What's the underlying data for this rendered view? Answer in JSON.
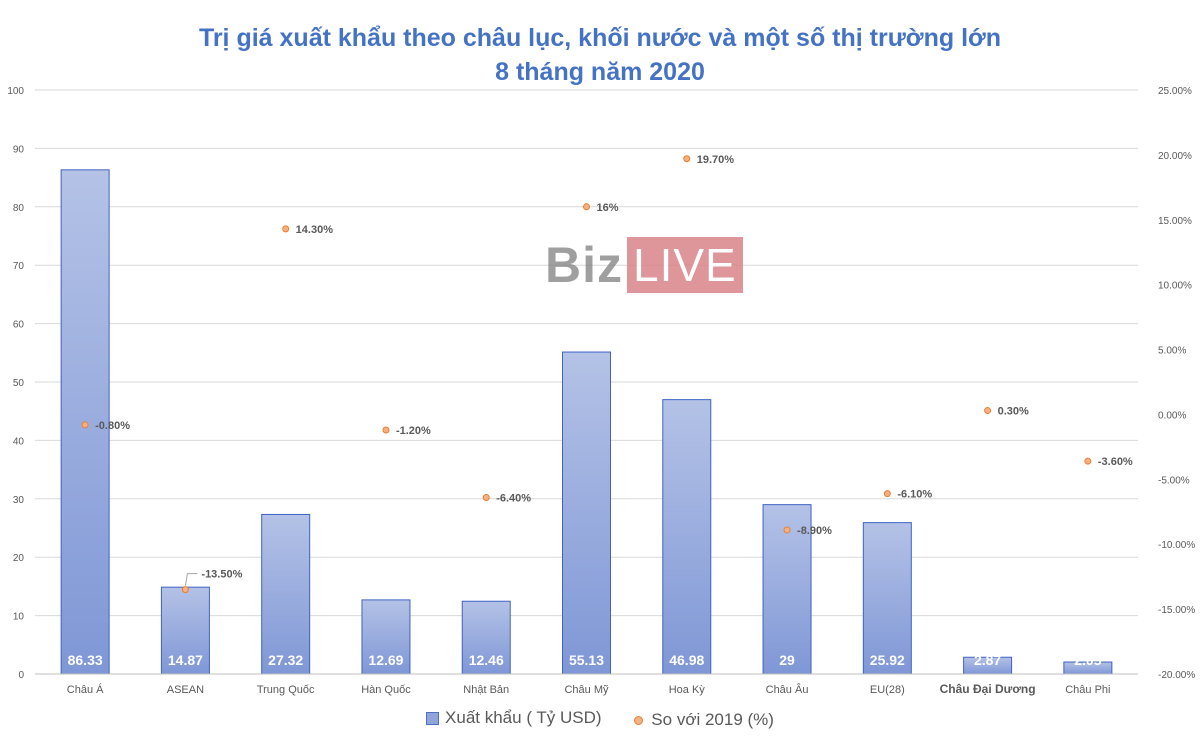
{
  "title_line1": "Trị giá xuất khẩu theo châu lục, khối nước và một số thị trường lớn",
  "title_line2": "8 tháng năm 2020",
  "watermark": {
    "part1": "Biz",
    "part2": "LIVE"
  },
  "legend": {
    "bar_label": "Xuất khẩu ( Tỷ USD)",
    "dot_label": "So với 2019 (%)"
  },
  "chart_data": {
    "type": "bar",
    "title": "Trị giá xuất khẩu theo châu lục, khối nước và một số thị trường lớn 8 tháng năm 2020",
    "categories": [
      "Châu Á",
      "ASEAN",
      "Trung Quốc",
      "Hàn Quốc",
      "Nhật Bản",
      "Châu Mỹ",
      "Hoa Kỳ",
      "Châu Âu",
      "EU(28)",
      "Châu Đại Dương",
      "Châu Phi"
    ],
    "series": [
      {
        "name": "Xuất khẩu ( Tỷ USD)",
        "type": "bar",
        "axis": "left",
        "values": [
          86.33,
          14.87,
          27.32,
          12.69,
          12.46,
          55.13,
          46.98,
          29,
          25.92,
          2.87,
          2.05
        ],
        "labels": [
          "86.33",
          "14.87",
          "27.32",
          "12.69",
          "12.46",
          "55.13",
          "46.98",
          "29",
          "25.92",
          "2.87",
          "2.05"
        ]
      },
      {
        "name": "So với 2019 (%)",
        "type": "scatter",
        "axis": "right",
        "values": [
          -0.8,
          -13.5,
          14.3,
          -1.2,
          -6.4,
          16,
          19.7,
          -8.9,
          -6.1,
          0.3,
          -3.6
        ],
        "labels": [
          "-0.80%",
          "-13.50%",
          "14.30%",
          "-1.20%",
          "-6.40%",
          "16%",
          "19.70%",
          "-8.90%",
          "-6.10%",
          "0.30%",
          "-3.60%"
        ]
      }
    ],
    "y_left": {
      "ticks": [
        "0",
        "10",
        "20",
        "30",
        "40",
        "50",
        "60",
        "70",
        "80",
        "90",
        "100"
      ],
      "min": 0,
      "max": 100
    },
    "y_right": {
      "ticks": [
        "-20.00%",
        "-15.00%",
        "-10.00%",
        "-5.00%",
        "0.00%",
        "5.00%",
        "10.00%",
        "15.00%",
        "20.00%",
        "25.00%"
      ],
      "min": -20,
      "max": 25
    },
    "grid": true,
    "legend_position": "bottom",
    "colors": {
      "bar_fill_top": "#b4c2e6",
      "bar_fill_bottom": "#7f97d6",
      "bar_stroke": "#3f63c4",
      "dot_fill": "#f4b183",
      "dot_stroke": "#ed7d31",
      "label": "#595959",
      "bar_label": "#ffffff",
      "grid": "#d9d9d9",
      "title": "#4472c4"
    }
  }
}
